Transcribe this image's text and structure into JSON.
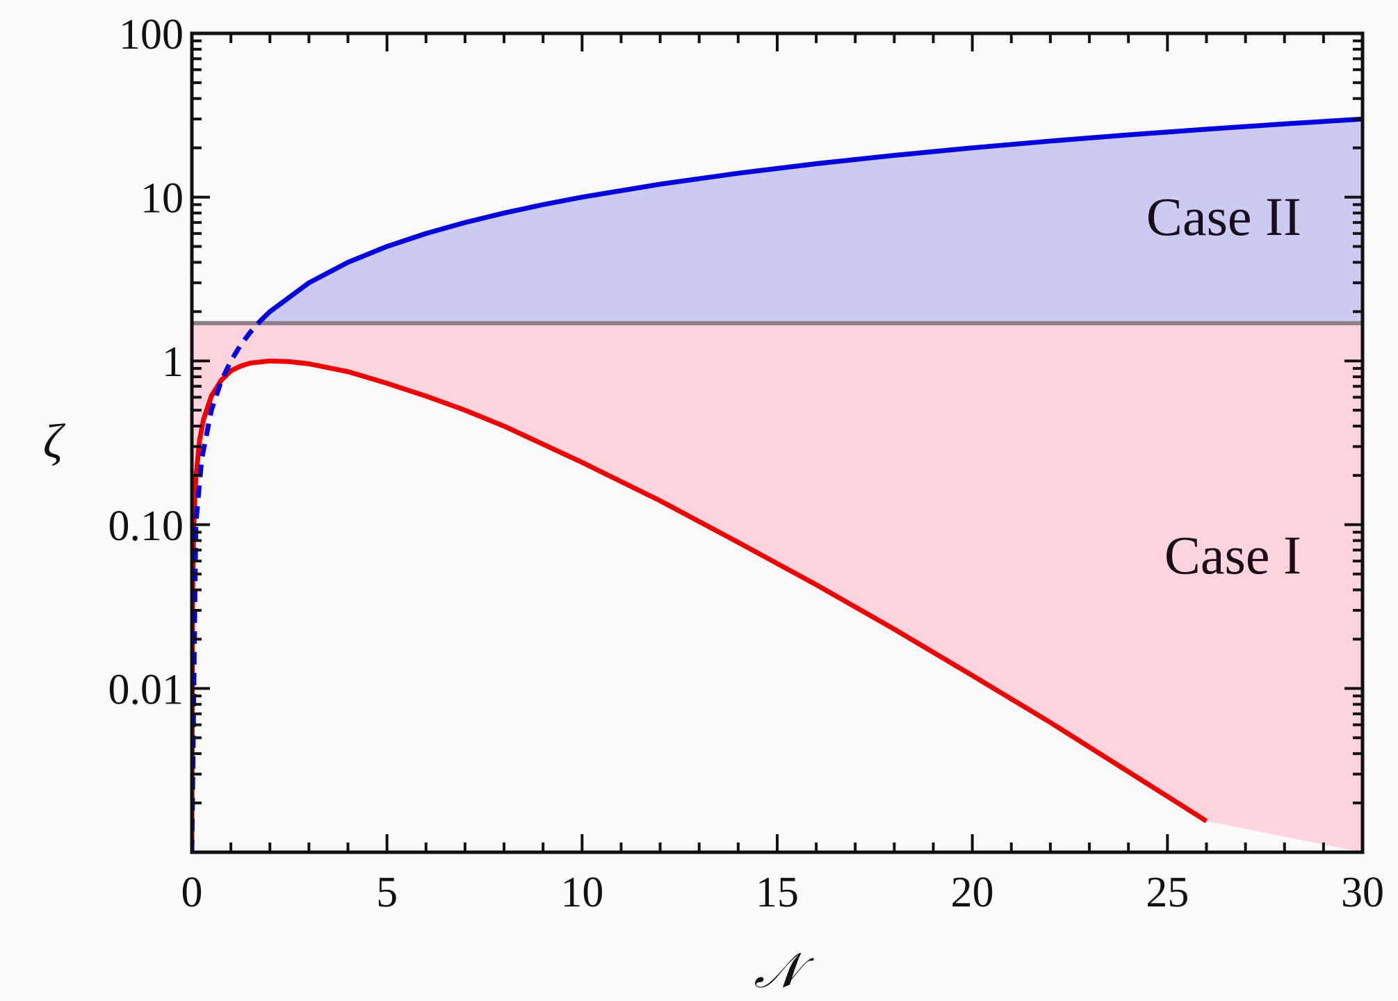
{
  "chart_data": {
    "type": "line",
    "xlabel": "𝒩",
    "ylabel": "ζ",
    "xlim": [
      0,
      30
    ],
    "ylim": [
      0.001,
      100
    ],
    "yscale": "log",
    "x_ticks": [
      0,
      5,
      10,
      15,
      20,
      25,
      30
    ],
    "x_tick_labels": [
      "0",
      "5",
      "10",
      "15",
      "20",
      "25",
      "30"
    ],
    "y_ticks": [
      0.01,
      0.1,
      1,
      10,
      100
    ],
    "y_tick_labels": [
      "0.01",
      "0.10",
      "1",
      "10",
      "100"
    ],
    "grid": false,
    "threshold_line": {
      "y": 1.7,
      "color": "#8c7f87"
    },
    "regions": [
      {
        "label": "Case II",
        "fill": "#cccaf3"
      },
      {
        "label": "Case I",
        "fill": "#ffd4de"
      }
    ],
    "series": [
      {
        "color": "#0000dd",
        "style": "dashed-then-solid",
        "dash_below_y": 1.7,
        "x": [
          0.0,
          0.1,
          0.25,
          0.5,
          0.75,
          1.0,
          1.25,
          1.5,
          1.75,
          2,
          3,
          4,
          5,
          6,
          7,
          8,
          9,
          10,
          12,
          14,
          16,
          18,
          20,
          22,
          24,
          26,
          28,
          30
        ],
        "y": [
          0.001,
          0.1,
          0.25,
          0.5,
          0.75,
          1.0,
          1.25,
          1.5,
          1.75,
          2,
          3,
          4,
          5,
          6,
          7,
          8,
          9,
          10,
          12,
          14,
          16,
          18,
          20,
          22,
          24,
          26,
          28,
          30
        ]
      },
      {
        "color": "#ee0000",
        "style": "solid",
        "x": [
          0.0,
          0.02,
          0.05,
          0.1,
          0.2,
          0.3,
          0.5,
          0.75,
          1.0,
          1.25,
          1.5,
          2,
          2.5,
          3,
          4,
          5,
          6,
          7,
          8,
          10,
          12,
          14,
          16,
          18,
          20,
          22,
          24,
          26
        ],
        "y": [
          0.001,
          0.04,
          0.1,
          0.19,
          0.33,
          0.44,
          0.61,
          0.76,
          0.87,
          0.93,
          0.97,
          1.0,
          0.99,
          0.96,
          0.86,
          0.73,
          0.61,
          0.5,
          0.4,
          0.24,
          0.14,
          0.078,
          0.043,
          0.023,
          0.012,
          0.0062,
          0.0031,
          0.00155
        ]
      }
    ]
  }
}
